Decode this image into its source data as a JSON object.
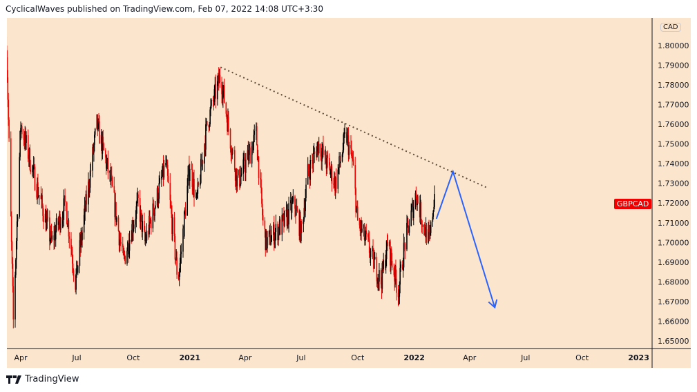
{
  "header": {
    "text": "CyclicalWaves published on TradingView.com, Feb 07, 2022 14:08 UTC+3:30"
  },
  "footer": {
    "brand": "TradingView"
  },
  "symbol": {
    "label": "GBPCAD",
    "price": 1.7195,
    "currency": "CAD"
  },
  "colors": {
    "bg": "#fbe5cc",
    "up": "#000000",
    "down": "#f20000",
    "arrow": "#2962ff",
    "trend": "#5d4b3a"
  },
  "chart_data": {
    "type": "candlestick",
    "title": "GBPCAD",
    "ylim": [
      1.645,
      1.8125
    ],
    "y_ticks": [
      1.65,
      1.66,
      1.67,
      1.68,
      1.69,
      1.7,
      1.71,
      1.72,
      1.73,
      1.74,
      1.75,
      1.76,
      1.77,
      1.78,
      1.79,
      1.8
    ],
    "x_ticks": [
      {
        "label": "Apr",
        "date": "2020-04-01"
      },
      {
        "label": "Jul",
        "date": "2020-07-01"
      },
      {
        "label": "Oct",
        "date": "2020-10-01"
      },
      {
        "label": "2021",
        "date": "2021-01-01",
        "bold": true
      },
      {
        "label": "Apr",
        "date": "2021-04-01"
      },
      {
        "label": "Jul",
        "date": "2021-07-01"
      },
      {
        "label": "Oct",
        "date": "2021-10-01"
      },
      {
        "label": "2022",
        "date": "2022-01-01",
        "bold": true
      },
      {
        "label": "Apr",
        "date": "2022-04-01"
      },
      {
        "label": "Jul",
        "date": "2022-07-01"
      },
      {
        "label": "Oct",
        "date": "2022-10-01"
      },
      {
        "label": "2023",
        "date": "2023-01-01",
        "bold": true
      }
    ],
    "price_path": [
      [
        "2020-03-09",
        1.8
      ],
      [
        "2020-03-20",
        1.66
      ],
      [
        "2020-04-01",
        1.76
      ],
      [
        "2020-05-21",
        1.7
      ],
      [
        "2020-06-13",
        1.72
      ],
      [
        "2020-06-29",
        1.68
      ],
      [
        "2020-08-03",
        1.76
      ],
      [
        "2020-08-26",
        1.73
      ],
      [
        "2020-09-15",
        1.69
      ],
      [
        "2020-10-09",
        1.72
      ],
      [
        "2020-10-20",
        1.7
      ],
      [
        "2020-11-23",
        1.74
      ],
      [
        "2020-12-13",
        1.68
      ],
      [
        "2021-01-01",
        1.74
      ],
      [
        "2021-01-12",
        1.72
      ],
      [
        "2021-01-29",
        1.76
      ],
      [
        "2021-02-20",
        1.785
      ],
      [
        "2021-03-09",
        1.75
      ],
      [
        "2021-03-20",
        1.73
      ],
      [
        "2021-04-08",
        1.745
      ],
      [
        "2021-04-19",
        1.755
      ],
      [
        "2021-04-30",
        1.71
      ],
      [
        "2021-05-05",
        1.7
      ],
      [
        "2021-06-03",
        1.71
      ],
      [
        "2021-06-20",
        1.72
      ],
      [
        "2021-07-01",
        1.705
      ],
      [
        "2021-07-12",
        1.735
      ],
      [
        "2021-07-29",
        1.75
      ],
      [
        "2021-08-26",
        1.73
      ],
      [
        "2021-09-12",
        1.755
      ],
      [
        "2021-09-23",
        1.74
      ],
      [
        "2021-10-01",
        1.71
      ],
      [
        "2021-10-16",
        1.7
      ],
      [
        "2021-10-27",
        1.69
      ],
      [
        "2021-11-08",
        1.68
      ],
      [
        "2021-11-19",
        1.7
      ],
      [
        "2021-12-06",
        1.675
      ],
      [
        "2021-12-17",
        1.7
      ],
      [
        "2022-01-04",
        1.725
      ],
      [
        "2022-01-15",
        1.71
      ],
      [
        "2022-01-26",
        1.7
      ],
      [
        "2022-02-04",
        1.728
      ]
    ],
    "trendline": [
      [
        "2021-02-20",
        1.789
      ],
      [
        "2022-04-28",
        1.728
      ]
    ],
    "projection": [
      [
        "2022-02-06",
        1.712
      ],
      [
        "2022-03-05",
        1.736
      ],
      [
        "2022-05-12",
        1.667
      ]
    ]
  }
}
